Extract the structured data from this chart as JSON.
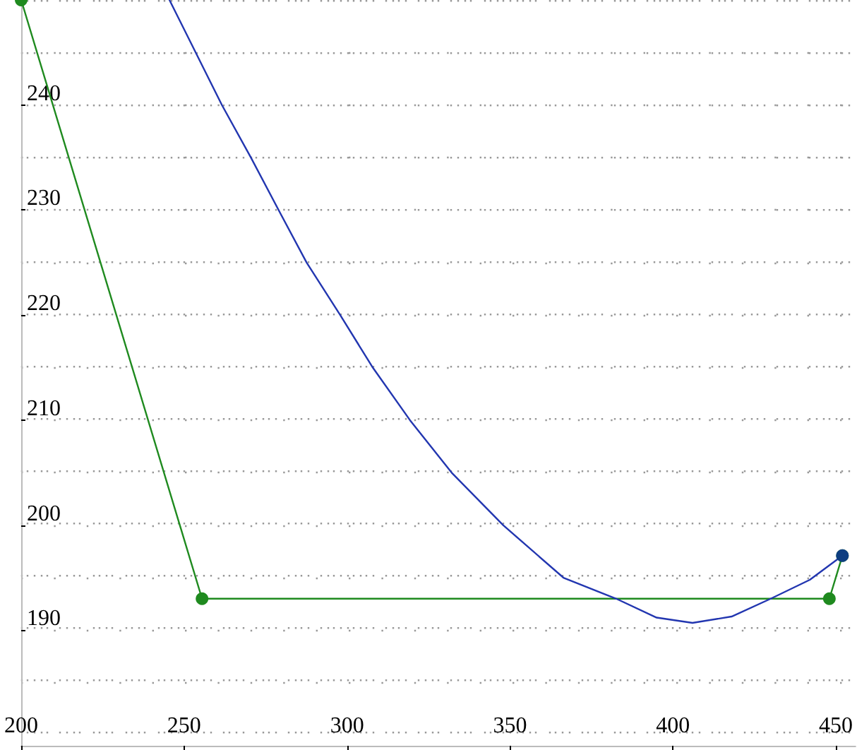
{
  "chart_data": {
    "type": "line",
    "xlim": [
      200,
      456
    ],
    "ylim": [
      179,
      250
    ],
    "xticks": [
      200,
      250,
      300,
      350,
      400,
      450
    ],
    "yticks": [
      190,
      200,
      210,
      220,
      230,
      240
    ],
    "grid": true,
    "line_style": "solid",
    "series": [
      {
        "type": "line",
        "color": "#1f8a1f",
        "marker": "circle",
        "x": [
          200,
          255.5,
          448,
          452
        ],
        "values": [
          250,
          193,
          193,
          197.1
        ]
      },
      {
        "type": "line",
        "color": "#2236b0",
        "marker": "none",
        "x": [
          245.5,
          261.6,
          270.5,
          279,
          287.6,
          297.9,
          307.9,
          319.3,
          332.1,
          347.9,
          366.4,
          382.6,
          395,
          406,
          418,
          430,
          442,
          452
        ],
        "values": [
          250,
          240,
          235,
          230,
          225,
          220,
          215,
          210,
          205,
          200,
          195,
          193,
          191.2,
          190.7,
          191.3,
          193,
          194.8,
          197.1
        ]
      },
      {
        "type": "scatter",
        "color": "#0a2a9a",
        "marker": "circle",
        "x": [
          452
        ],
        "values": [
          197.1
        ]
      }
    ]
  }
}
